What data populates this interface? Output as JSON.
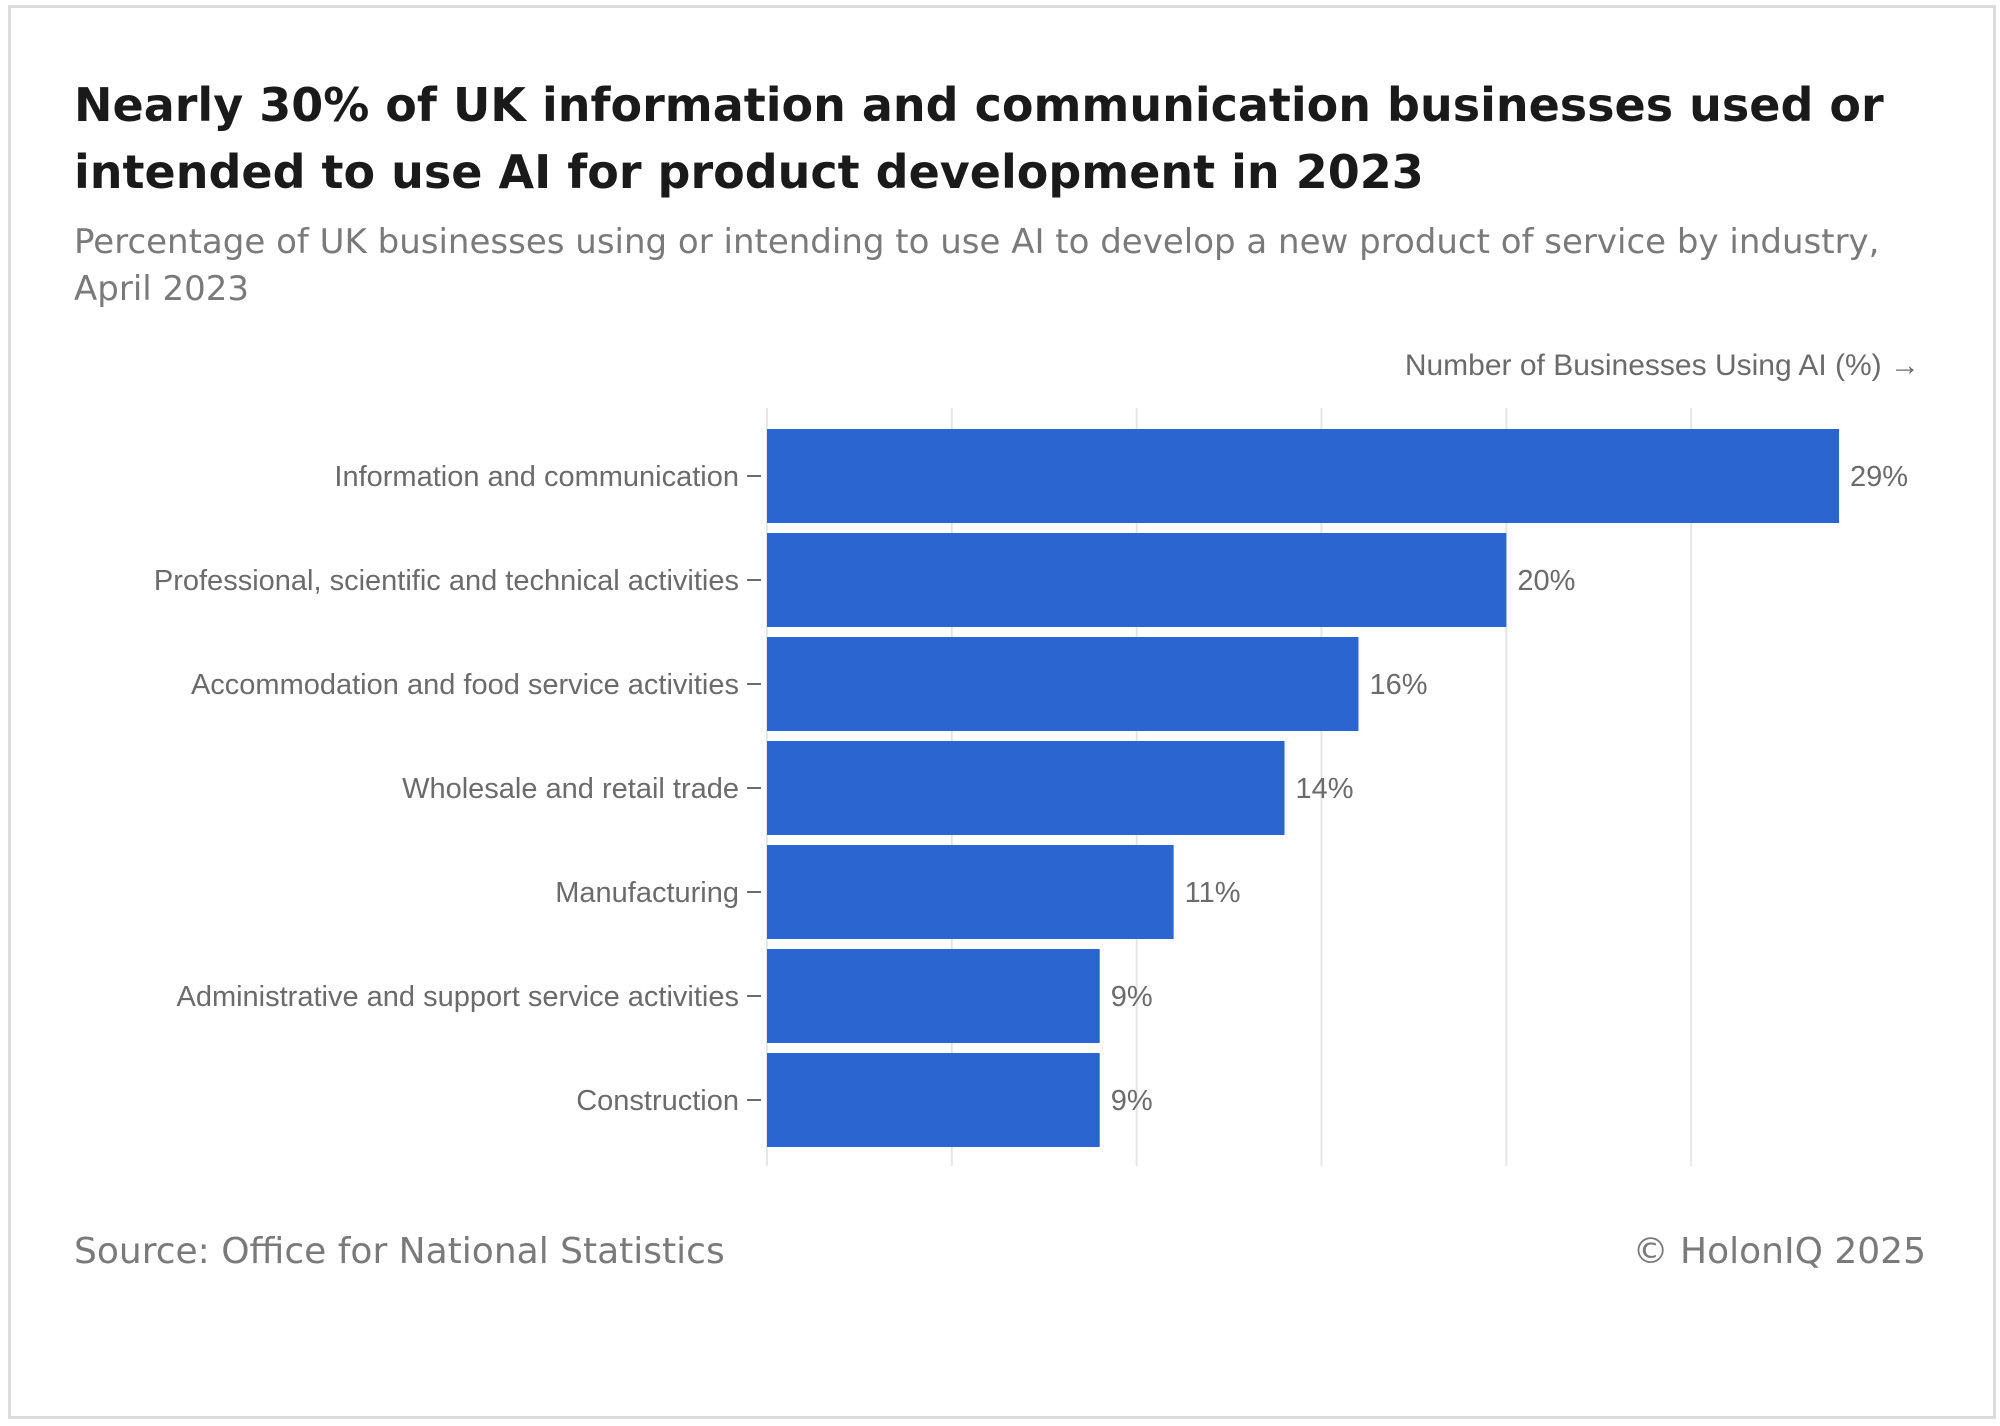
{
  "chart_data": {
    "type": "bar",
    "orientation": "horizontal",
    "title": "Nearly 30% of UK information and communication businesses used or intended to use AI for product development in 2023",
    "subtitle": "Percentage of UK businesses using or intending to use AI to develop a new product of service by industry, April 2023",
    "xlabel": "Number of Businesses Using AI (%) →",
    "categories": [
      "Information and communication",
      "Professional, scientific and technical activities",
      "Accommodation and food service activities",
      "Wholesale and retail trade",
      "Manufacturing",
      "Administrative and support service activities",
      "Construction"
    ],
    "values": [
      29,
      20,
      16,
      14,
      11,
      9,
      9
    ],
    "data_labels": [
      "29%",
      "20%",
      "16%",
      "14%",
      "11%",
      "9%",
      "9%"
    ],
    "xlim": [
      0,
      30
    ],
    "gridlines": [
      0,
      5,
      10,
      15,
      20,
      25
    ],
    "grid": true,
    "bar_color": "#2b65cf",
    "grid_color": "#e6e6e6"
  },
  "footer": {
    "source": "Source: Office for National Statistics",
    "copyright": "© HolonIQ 2025"
  }
}
